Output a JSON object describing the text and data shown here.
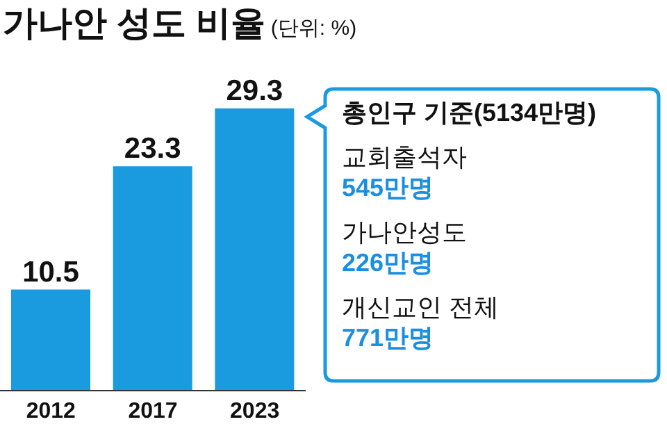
{
  "chart_data": {
    "type": "bar",
    "title": "가나안 성도 비율",
    "subtitle": "(단위: %)",
    "categories": [
      "2012",
      "2017",
      "2023"
    ],
    "values": [
      10.5,
      23.3,
      29.3
    ],
    "color": "#1a9be0",
    "data_labels": true,
    "grid": false,
    "legend": false,
    "annotations": [
      "총인구 기준(5134만명)",
      "교회출석자",
      "545만명",
      "가나안성도",
      "226만명",
      "개신교인 전체",
      "771만명"
    ]
  }
}
